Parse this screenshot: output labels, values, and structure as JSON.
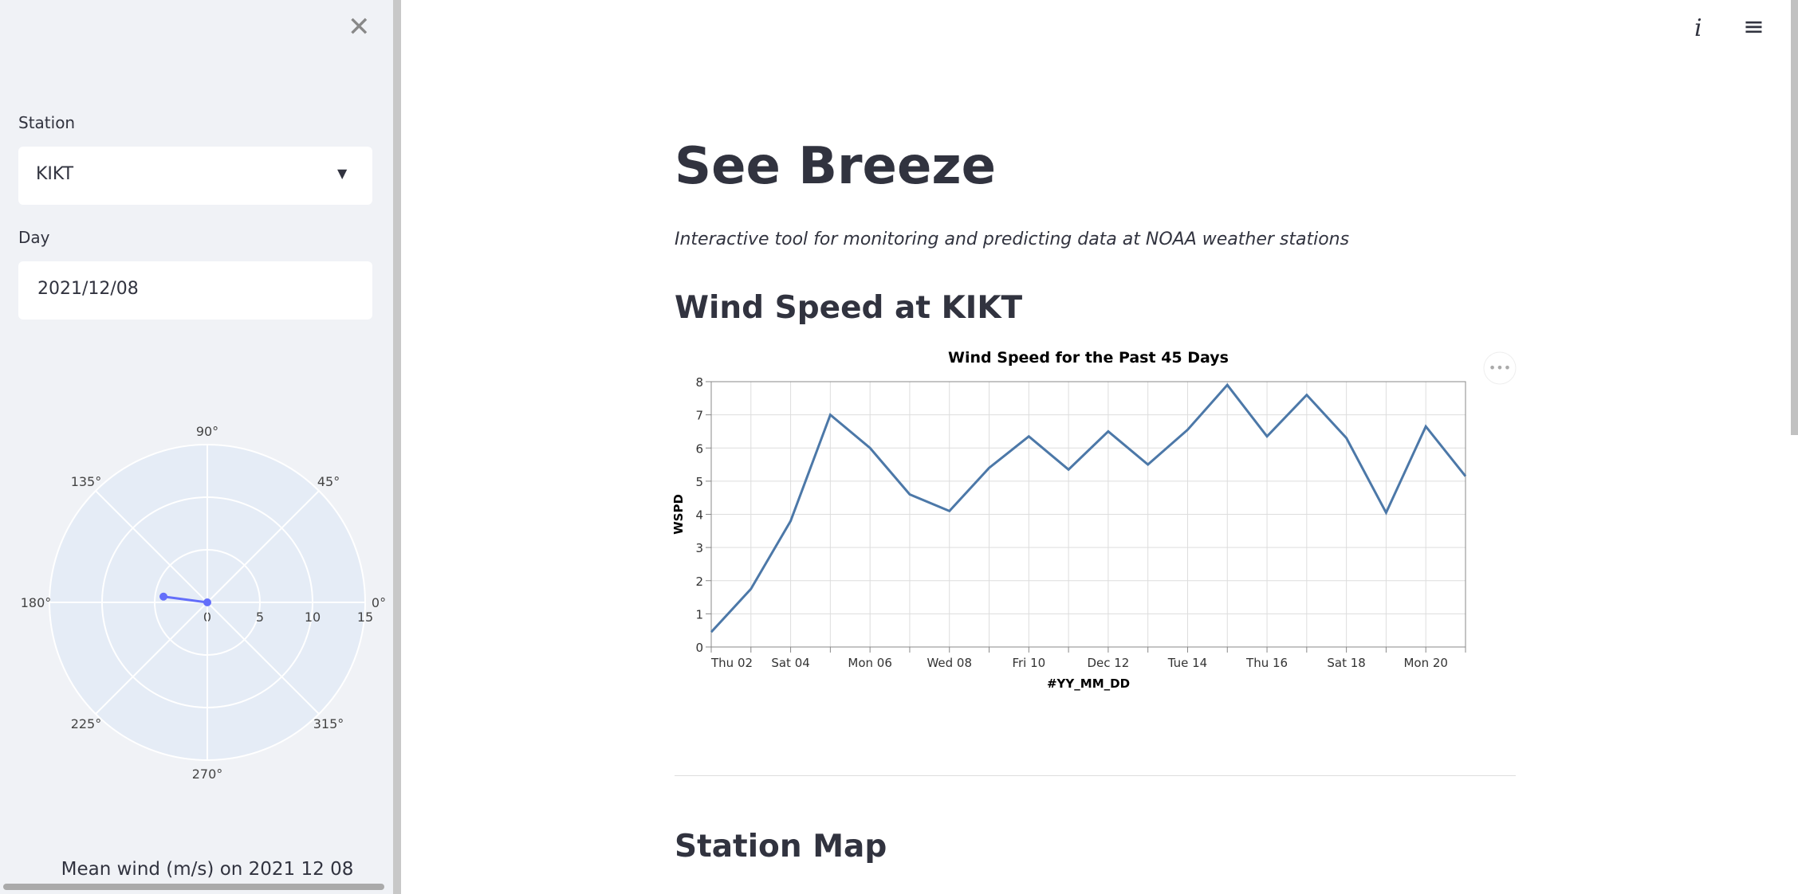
{
  "sidebar": {
    "station_label": "Station",
    "station": "KIKT",
    "day_label": "Day",
    "day": "2021/12/08",
    "caption": "Mean wind (m/s) on 2021 12 08"
  },
  "main": {
    "title": "See Breeze",
    "subtitle": "Interactive tool for monitoring and predicting data at NOAA weather stations",
    "section_title": "Wind Speed at KIKT",
    "section2_title": "Station Map"
  },
  "chart_data": [
    {
      "type": "line",
      "title": "Wind Speed for the Past 45 Days",
      "x_label": "#YY_MM_DD",
      "y_label": "WSPD",
      "x": [
        2,
        3,
        4,
        5,
        6,
        7,
        8,
        9,
        10,
        11,
        12,
        13,
        14,
        15,
        16,
        17,
        18,
        19,
        20,
        21
      ],
      "values": [
        0.45,
        1.75,
        3.8,
        7.0,
        6.0,
        4.6,
        4.1,
        5.4,
        6.35,
        5.35,
        6.5,
        5.5,
        6.55,
        7.9,
        6.35,
        7.6,
        6.3,
        4.05,
        6.65,
        5.15
      ],
      "color": "#4c78a8",
      "xlim": [
        2,
        21
      ],
      "xticks": [
        {
          "value": 2,
          "label": "Thu 02"
        },
        {
          "value": 4,
          "label": "Sat 04"
        },
        {
          "value": 6,
          "label": "Mon 06"
        },
        {
          "value": 8,
          "label": "Wed 08"
        },
        {
          "value": 10,
          "label": "Fri 10"
        },
        {
          "value": 12,
          "label": "Dec 12"
        },
        {
          "value": 14,
          "label": "Tue 14"
        },
        {
          "value": 16,
          "label": "Thu 16"
        },
        {
          "value": 18,
          "label": "Sat 18"
        },
        {
          "value": 20,
          "label": "Mon 20"
        }
      ],
      "ylim": [
        0,
        8
      ],
      "yticks": [
        0,
        1,
        2,
        3,
        4,
        5,
        6,
        7,
        8
      ],
      "grid": true
    },
    {
      "type": "polar",
      "r": [
        0,
        4.2
      ],
      "theta": [
        0,
        172.5
      ],
      "color": "#636efa",
      "rlim": [
        0,
        15
      ],
      "rticks": [
        0,
        5,
        10,
        15
      ],
      "thetaticks": [
        {
          "value": 0,
          "label": "0°"
        },
        {
          "value": 45,
          "label": "45°"
        },
        {
          "value": 90,
          "label": "90°"
        },
        {
          "value": 135,
          "label": "135°"
        },
        {
          "value": 180,
          "label": "180°"
        },
        {
          "value": 225,
          "label": "225°"
        },
        {
          "value": 270,
          "label": "270°"
        },
        {
          "value": 315,
          "label": "315°"
        }
      ]
    }
  ]
}
